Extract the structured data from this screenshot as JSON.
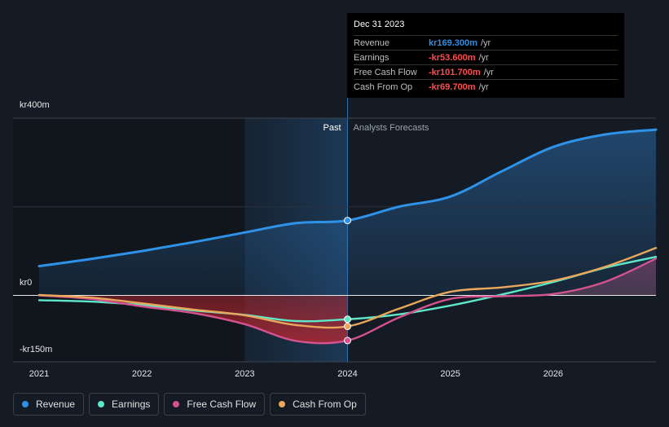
{
  "tooltip": {
    "date": "Dec 31 2023",
    "rows": [
      {
        "label": "Revenue",
        "value": "kr169.300m",
        "unit": "/yr",
        "color": "#2e8fe6"
      },
      {
        "label": "Earnings",
        "value": "-kr53.600m",
        "unit": "/yr",
        "color": "#ff4d4d"
      },
      {
        "label": "Free Cash Flow",
        "value": "-kr101.700m",
        "unit": "/yr",
        "color": "#ff4d4d"
      },
      {
        "label": "Cash From Op",
        "value": "-kr69.700m",
        "unit": "/yr",
        "color": "#ff4d4d"
      }
    ]
  },
  "legend": [
    {
      "label": "Revenue",
      "color": "#2e93e8"
    },
    {
      "label": "Earnings",
      "color": "#5ee8c9"
    },
    {
      "label": "Free Cash Flow",
      "color": "#d4528f"
    },
    {
      "label": "Cash From Op",
      "color": "#e8a75a"
    }
  ],
  "chart_data": {
    "type": "line",
    "y_labels": [
      "kr400m",
      "kr0",
      "-kr150m"
    ],
    "x_tick_labels": [
      "2021",
      "2022",
      "2023",
      "2024",
      "2025",
      "2026"
    ],
    "past_label": "Past",
    "forecast_label": "Analysts Forecasts",
    "ylim": [
      -150,
      400
    ],
    "xlim": [
      2021,
      2027
    ],
    "divider_x": 2024,
    "highlight_start": 2023,
    "series": [
      {
        "name": "Revenue",
        "color": "#2e93e8",
        "area": true,
        "x": [
          2021,
          2021.5,
          2022,
          2022.5,
          2023,
          2023.5,
          2024,
          2024.5,
          2025,
          2025.5,
          2026,
          2026.5,
          2027
        ],
        "y": [
          66,
          82,
          100,
          120,
          142,
          163,
          169,
          200,
          223,
          280,
          335,
          363,
          374
        ]
      },
      {
        "name": "Earnings",
        "color": "#5ee8c9",
        "x": [
          2021,
          2021.5,
          2022,
          2022.5,
          2023,
          2023.5,
          2024,
          2024.5,
          2025,
          2025.5,
          2026,
          2026.5,
          2027
        ],
        "y": [
          -11,
          -14,
          -22,
          -34,
          -44,
          -58,
          -54,
          -43,
          -23,
          2,
          30,
          62,
          87
        ]
      },
      {
        "name": "Free Cash Flow",
        "color": "#d4528f",
        "x": [
          2021,
          2021.5,
          2022,
          2022.5,
          2023,
          2023.5,
          2024,
          2024.5,
          2025,
          2025.5,
          2026,
          2026.5,
          2027
        ],
        "y": [
          0,
          -8,
          -25,
          -40,
          -65,
          -103,
          -102,
          -50,
          -8,
          -2,
          3,
          30,
          83
        ]
      },
      {
        "name": "Cash From Op",
        "color": "#e8a75a",
        "x": [
          2021,
          2021.5,
          2022,
          2022.5,
          2023,
          2023.5,
          2024,
          2024.5,
          2025,
          2025.5,
          2026,
          2026.5,
          2027
        ],
        "y": [
          1,
          -5,
          -18,
          -32,
          -45,
          -67,
          -70,
          -30,
          8,
          18,
          33,
          64,
          107
        ]
      }
    ]
  }
}
